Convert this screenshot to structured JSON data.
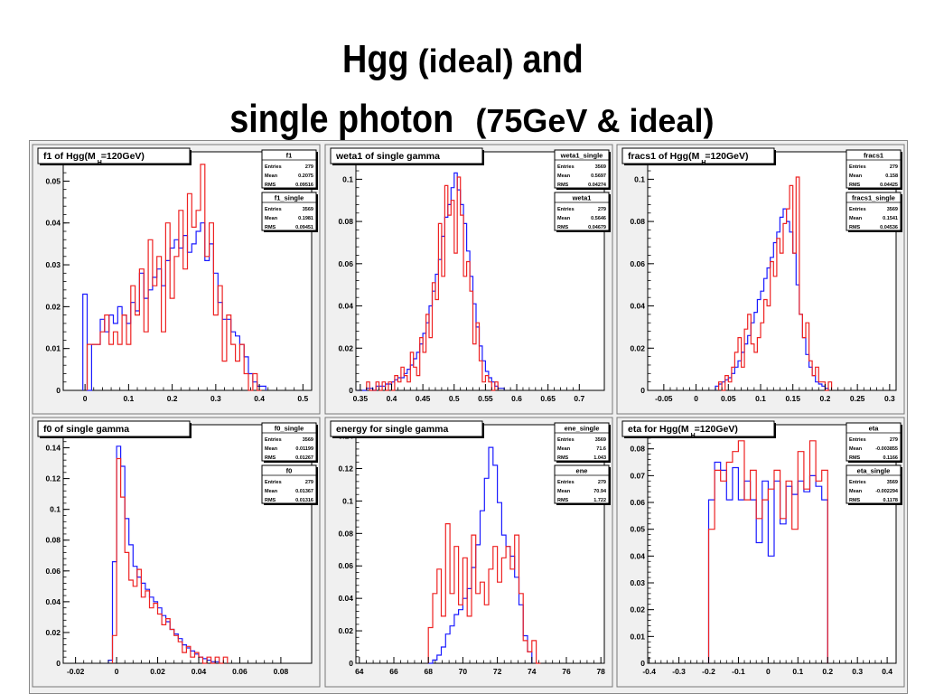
{
  "title": {
    "line1_big": "Hgg",
    "line1_small": "(ideal)",
    "line1_tail": "and",
    "line2_big": "single photon",
    "line2_small": "(75GeV & ideal)"
  },
  "colors": {
    "blue": "#1a1aff",
    "red": "#ee2222",
    "frame": "#000000",
    "pad": "#f0f0f0"
  },
  "chart_data": [
    {
      "type": "histogram",
      "title": "f1 of Hgg(M",
      "title_sub": "H",
      "title_tail": "=120GeV)",
      "xlim": [
        -0.05,
        0.52
      ],
      "ylim": [
        0,
        0.057
      ],
      "xticks": [
        0,
        0.1,
        0.2,
        0.3,
        0.4,
        0.5
      ],
      "xticklabels": [
        "0",
        "0.1",
        "0.2",
        "0.3",
        "0.4",
        "0.5"
      ],
      "yticks": [
        0.01,
        0.02,
        0.03,
        0.04,
        0.05
      ],
      "yticklabels": [
        "0.01",
        "0.02",
        "0.03",
        "0.04",
        "0.05"
      ],
      "stats": [
        {
          "name": "f1",
          "rows": [
            [
              "Entries",
              "279"
            ],
            [
              "Mean",
              "0.2075"
            ],
            [
              "RMS",
              "0.09516"
            ]
          ]
        },
        {
          "name": "f1_single",
          "rows": [
            [
              "Entries",
              "3569"
            ],
            [
              "Mean",
              "0.1981"
            ],
            [
              "RMS",
              "0.09451"
            ]
          ]
        }
      ],
      "series": [
        {
          "color": "blue",
          "x0": -0.005,
          "bin": 0.01,
          "values": [
            0.023,
            0.0,
            0.011,
            0.011,
            0.017,
            0.014,
            0.018,
            0.016,
            0.02,
            0.018,
            0.016,
            0.021,
            0.019,
            0.028,
            0.022,
            0.024,
            0.027,
            0.029,
            0.025,
            0.031,
            0.034,
            0.036,
            0.034,
            0.037,
            0.033,
            0.035,
            0.038,
            0.04,
            0.031,
            0.035,
            0.028,
            0.021,
            0.017,
            0.017,
            0.014,
            0.013,
            0.011,
            0.008,
            0.004,
            0.002,
            0.001,
            0.001
          ]
        },
        {
          "color": "red",
          "x0": 0.005,
          "bin": 0.01,
          "values": [
            0.011,
            0.011,
            0.011,
            0.014,
            0.018,
            0.011,
            0.014,
            0.011,
            0.018,
            0.011,
            0.025,
            0.018,
            0.029,
            0.014,
            0.036,
            0.025,
            0.032,
            0.014,
            0.04,
            0.022,
            0.032,
            0.043,
            0.029,
            0.047,
            0.039,
            0.043,
            0.054,
            0.032,
            0.04,
            0.018,
            0.025,
            0.007,
            0.018,
            0.011,
            0.007,
            0.011,
            0.004,
            0.0,
            0.004,
            0.0
          ]
        }
      ]
    },
    {
      "type": "histogram",
      "title": "weta1 of single gamma",
      "xlim": [
        0.343,
        0.74
      ],
      "ylim": [
        0,
        0.113
      ],
      "xticks": [
        0.35,
        0.4,
        0.45,
        0.5,
        0.55,
        0.6,
        0.65,
        0.7
      ],
      "xticklabels": [
        "0.35",
        "0.4",
        "0.45",
        "0.5",
        "0.55",
        "0.6",
        "0.65",
        "0.7"
      ],
      "yticks": [
        0.02,
        0.04,
        0.06,
        0.08,
        0.1
      ],
      "yticklabels": [
        "0.02",
        "0.04",
        "0.06",
        "0.08",
        "0.1"
      ],
      "stats": [
        {
          "name": "weta1_single",
          "rows": [
            [
              "Entries",
              "3569"
            ],
            [
              "Mean",
              "0.5697"
            ],
            [
              "RMS",
              "0.04274"
            ]
          ]
        },
        {
          "name": "weta1",
          "rows": [
            [
              "Entries",
              "279"
            ],
            [
              "Mean",
              "0.5646"
            ],
            [
              "RMS",
              "0.04679"
            ]
          ]
        }
      ],
      "series": [
        {
          "color": "blue",
          "x0": 0.345,
          "bin": 0.005,
          "values": [
            0,
            0,
            0,
            0.001,
            0.001,
            0,
            0.002,
            0.002,
            0.002,
            0.003,
            0.003,
            0.004,
            0.005,
            0.006,
            0.006,
            0.008,
            0.01,
            0.012,
            0.015,
            0.018,
            0.022,
            0.027,
            0.032,
            0.04,
            0.047,
            0.055,
            0.062,
            0.073,
            0.082,
            0.088,
            0.096,
            0.103,
            0.095,
            0.088,
            0.079,
            0.066,
            0.054,
            0.041,
            0.03,
            0.021,
            0.014,
            0.009,
            0.006,
            0.004,
            0.002,
            0.001,
            0.001
          ]
        },
        {
          "color": "red",
          "x0": 0.36,
          "bin": 0.005,
          "values": [
            0.004,
            0,
            0,
            0.004,
            0,
            0.004,
            0,
            0.004,
            0,
            0.007,
            0.004,
            0.011,
            0.007,
            0.004,
            0.018,
            0.011,
            0.007,
            0.025,
            0.018,
            0.036,
            0.025,
            0.051,
            0.043,
            0.079,
            0.054,
            0.097,
            0.083,
            0.09,
            0.065,
            0.101,
            0.083,
            0.054,
            0.061,
            0.047,
            0.022,
            0.032,
            0.014,
            0.004,
            0.007,
            0.004,
            0,
            0.004
          ]
        }
      ]
    },
    {
      "type": "histogram",
      "title": "fracs1 of Hgg(M",
      "title_sub": "H",
      "title_tail": "=120GeV)",
      "xlim": [
        -0.075,
        0.31
      ],
      "ylim": [
        0,
        0.113
      ],
      "xticks": [
        -0.05,
        0,
        0.05,
        0.1,
        0.15,
        0.2,
        0.25,
        0.3
      ],
      "xticklabels": [
        "-0.05",
        "0",
        "0.05",
        "0.1",
        "0.15",
        "0.2",
        "0.25",
        "0.3"
      ],
      "yticks": [
        0.02,
        0.04,
        0.06,
        0.08,
        0.1
      ],
      "yticklabels": [
        "0.02",
        "0.04",
        "0.06",
        "0.08",
        "0.1"
      ],
      "stats": [
        {
          "name": "fracs1",
          "rows": [
            [
              "Entries",
              "279"
            ],
            [
              "Mean",
              "0.158"
            ],
            [
              "RMS",
              "0.04425"
            ]
          ]
        },
        {
          "name": "fracs1_single",
          "rows": [
            [
              "Entries",
              "3569"
            ],
            [
              "Mean",
              "0.1541"
            ],
            [
              "RMS",
              "0.04536"
            ]
          ]
        }
      ],
      "series": [
        {
          "color": "blue",
          "x0": 0.03,
          "bin": 0.005,
          "values": [
            0.002,
            0.003,
            0.004,
            0.005,
            0.006,
            0.008,
            0.011,
            0.014,
            0.018,
            0.022,
            0.026,
            0.032,
            0.037,
            0.043,
            0.047,
            0.053,
            0.058,
            0.063,
            0.07,
            0.075,
            0.082,
            0.086,
            0.08,
            0.075,
            0.065,
            0.05,
            0.036,
            0.025,
            0.017,
            0.011,
            0.007,
            0.004,
            0.003,
            0.002,
            0.001
          ]
        },
        {
          "color": "red",
          "x0": 0.035,
          "bin": 0.005,
          "values": [
            0.004,
            0,
            0.007,
            0.004,
            0.011,
            0.018,
            0.025,
            0.011,
            0.029,
            0.036,
            0.022,
            0.018,
            0.025,
            0.032,
            0.043,
            0.04,
            0.061,
            0.054,
            0.072,
            0.065,
            0.079,
            0.086,
            0.097,
            0.065,
            0.101,
            0.036,
            0.025,
            0.032,
            0.014,
            0.007,
            0.011,
            0.004,
            0.004,
            0,
            0.004
          ]
        }
      ]
    },
    {
      "type": "histogram",
      "title": "f0 of single gamma",
      "xlim": [
        -0.026,
        0.095
      ],
      "ylim": [
        0,
        0.155
      ],
      "xticks": [
        -0.02,
        0,
        0.02,
        0.04,
        0.06,
        0.08
      ],
      "xticklabels": [
        "-0.02",
        "0",
        "0.02",
        "0.04",
        "0.06",
        "0.08"
      ],
      "yticks": [
        0.02,
        0.04,
        0.06,
        0.08,
        0.1,
        0.12,
        0.14
      ],
      "yticklabels": [
        "0.02",
        "0.04",
        "0.06",
        "0.08",
        "0.1",
        "0.12",
        "0.14"
      ],
      "stats": [
        {
          "name": "f0_single",
          "rows": [
            [
              "Entries",
              "3569"
            ],
            [
              "Mean",
              "0.01199"
            ],
            [
              "RMS",
              "0.01267"
            ]
          ]
        },
        {
          "name": "f0",
          "rows": [
            [
              "Entries",
              "279"
            ],
            [
              "Mean",
              "0.01367"
            ],
            [
              "RMS",
              "0.01316"
            ]
          ]
        }
      ],
      "series": [
        {
          "color": "blue",
          "x0": -0.004,
          "bin": 0.002,
          "values": [
            0.002,
            0.066,
            0.141,
            0.128,
            0.094,
            0.077,
            0.063,
            0.056,
            0.052,
            0.048,
            0.043,
            0.04,
            0.036,
            0.031,
            0.027,
            0.022,
            0.019,
            0.016,
            0.012,
            0.01,
            0.008,
            0.006,
            0.004,
            0.003,
            0.002,
            0.001,
            0.001
          ]
        },
        {
          "color": "red",
          "x0": -0.002,
          "bin": 0.002,
          "values": [
            0.018,
            0.133,
            0.108,
            0.072,
            0.054,
            0.05,
            0.061,
            0.043,
            0.047,
            0.036,
            0.039,
            0.032,
            0.025,
            0.029,
            0.022,
            0.018,
            0.014,
            0.007,
            0.011,
            0.004,
            0.007,
            0.004,
            0,
            0.004,
            0,
            0.004,
            0,
            0.004
          ]
        }
      ]
    },
    {
      "type": "histogram",
      "title": "energy for single gamma",
      "xlim": [
        63.8,
        78.2
      ],
      "ylim": [
        0,
        0.147
      ],
      "xticks": [
        64,
        66,
        68,
        70,
        72,
        74,
        76,
        78
      ],
      "xticklabels": [
        "64",
        "66",
        "68",
        "70",
        "72",
        "74",
        "76",
        "78"
      ],
      "yticks": [
        0.02,
        0.04,
        0.06,
        0.08,
        0.1,
        0.12,
        0.14
      ],
      "yticklabels": [
        "0.02",
        "0.04",
        "0.06",
        "0.08",
        "0.1",
        "0.12",
        "0.14"
      ],
      "stats": [
        {
          "name": "ene_single",
          "rows": [
            [
              "Entries",
              "3569"
            ],
            [
              "Mean",
              "71.6"
            ],
            [
              "RMS",
              "1.043"
            ]
          ]
        },
        {
          "name": "ene",
          "rows": [
            [
              "Entries",
              "279"
            ],
            [
              "Mean",
              "70.94"
            ],
            [
              "RMS",
              "1.722"
            ]
          ]
        }
      ],
      "series": [
        {
          "color": "blue",
          "x0": 68,
          "bin": 0.25,
          "values": [
            0,
            0.002,
            0.005,
            0.01,
            0.018,
            0.023,
            0.03,
            0.033,
            0.04,
            0.046,
            0.059,
            0.073,
            0.094,
            0.114,
            0.133,
            0.122,
            0.099,
            0.079,
            0.072,
            0.066,
            0.053,
            0.036,
            0.017,
            0.007
          ]
        },
        {
          "color": "red",
          "x0": 68,
          "bin": 0.25,
          "values": [
            0.022,
            0.043,
            0.058,
            0.029,
            0.086,
            0.043,
            0.072,
            0.036,
            0.065,
            0.029,
            0.079,
            0.043,
            0.05,
            0.036,
            0.058,
            0.072,
            0.05,
            0.065,
            0.072,
            0.058,
            0.079,
            0.043,
            0.014,
            0.007,
            0.014,
            0
          ]
        }
      ]
    },
    {
      "type": "histogram",
      "title": "eta for Hgg(M",
      "title_sub": "H",
      "title_tail": "=120GeV)",
      "xlim": [
        -0.405,
        0.43
      ],
      "ylim": [
        0,
        0.089
      ],
      "xticks": [
        -0.4,
        -0.3,
        -0.2,
        -0.1,
        0,
        0.1,
        0.2,
        0.3,
        0.4
      ],
      "xticklabels": [
        "-0.4",
        "-0.3",
        "-0.2",
        "-0.1",
        "0",
        "0.1",
        "0.2",
        "0.3",
        "0.4"
      ],
      "yticks": [
        0.01,
        0.02,
        0.03,
        0.04,
        0.05,
        0.06,
        0.07,
        0.08
      ],
      "yticklabels": [
        "0.01",
        "0.02",
        "0.03",
        "0.04",
        "0.05",
        "0.06",
        "0.07",
        "0.08"
      ],
      "stats": [
        {
          "name": "eta",
          "rows": [
            [
              "Entries",
              "279"
            ],
            [
              "Mean",
              "-0.003855"
            ],
            [
              "RMS",
              "0.1166"
            ]
          ]
        },
        {
          "name": "eta_single",
          "rows": [
            [
              "Entries",
              "3569"
            ],
            [
              "Mean",
              "-0.002294"
            ],
            [
              "RMS",
              "0.1178"
            ]
          ]
        }
      ],
      "series": [
        {
          "color": "blue",
          "x0": -0.2,
          "bin": 0.02,
          "values": [
            0.061,
            0.075,
            0.072,
            0.061,
            0.073,
            0.061,
            0.068,
            0.061,
            0.045,
            0.068,
            0.04,
            0.068,
            0.052,
            0.066,
            0.063,
            0.068,
            0.064,
            0.07,
            0.066,
            0.061
          ]
        },
        {
          "color": "red",
          "x0": -0.2,
          "bin": 0.02,
          "values": [
            0.05,
            0.072,
            0.068,
            0.075,
            0.079,
            0.083,
            0.061,
            0.072,
            0.054,
            0.061,
            0.065,
            0.072,
            0.054,
            0.068,
            0.05,
            0.079,
            0.065,
            0.083,
            0.068,
            0.072
          ]
        }
      ]
    }
  ]
}
